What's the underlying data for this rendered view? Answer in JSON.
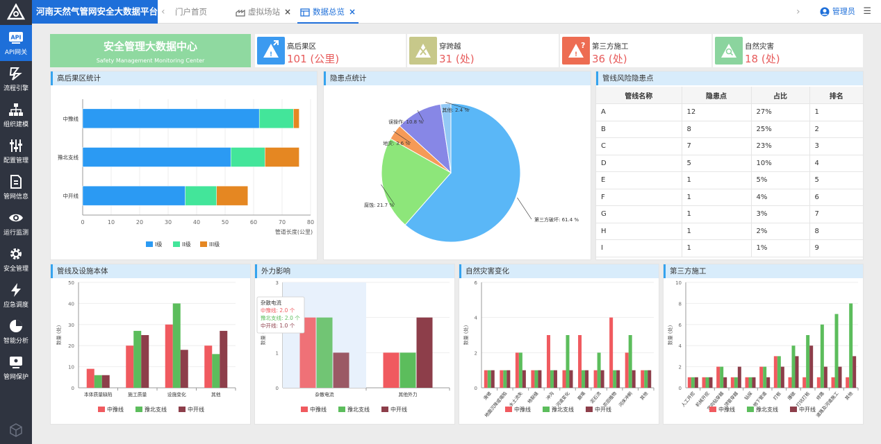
{
  "app": {
    "title": "河南天然气管网安全大数据平台"
  },
  "tabs": [
    {
      "label": "门户首页"
    },
    {
      "label": "虚拟场站"
    },
    {
      "label": "数据总览"
    }
  ],
  "user": {
    "name": "管理员"
  },
  "sidebar": {
    "items": [
      {
        "label": "API网关"
      },
      {
        "label": "流程引擎"
      },
      {
        "label": "组织建模"
      },
      {
        "label": "配置管理"
      },
      {
        "label": "管网信息"
      },
      {
        "label": "运行监测"
      },
      {
        "label": "安全管理"
      },
      {
        "label": "应急调度"
      },
      {
        "label": "智能分析"
      },
      {
        "label": "管网保护"
      }
    ]
  },
  "hero": {
    "title": "安全管理大数据中心",
    "subtitle": "Safety Management Monitoring Center"
  },
  "stats": [
    {
      "label": "高后果区",
      "value": "101 (公里)"
    },
    {
      "label": "穿跨越",
      "value": "31 (处)"
    },
    {
      "label": "第三方施工",
      "value": "36 (处)"
    },
    {
      "label": "自然灾害",
      "value": "18 (处)"
    }
  ],
  "colors": {
    "s1": "#2b9af3",
    "s2": "#43e59a",
    "s3": "#e58722",
    "red": "#f05a5f",
    "green": "#5cbd5c",
    "dark": "#8d3e4a"
  },
  "panels": {
    "hca": "高后果区统计",
    "hazard": "隐患点统计",
    "risk": "管线风险隐患点",
    "body": "管线及设施本体",
    "external": "外力影响",
    "nature": "自然灾害变化",
    "third": "第三方施工"
  },
  "chart_data": [
    {
      "type": "bar",
      "orientation": "horizontal",
      "stacked": true,
      "title": "高后果区统计",
      "categories": [
        "中豫线",
        "豫北支线",
        "中开线"
      ],
      "series": [
        {
          "name": "I级",
          "values": [
            62,
            52,
            36
          ]
        },
        {
          "name": "II级",
          "values": [
            12,
            12,
            11
          ]
        },
        {
          "name": "III级",
          "values": [
            2,
            12,
            11
          ]
        }
      ],
      "xticks": [
        "0",
        "10",
        "20",
        "30",
        "40",
        "50",
        "60",
        "70",
        "80"
      ],
      "xlim": [
        0,
        80
      ],
      "xlabel": "管道长度(公里)"
    },
    {
      "type": "pie",
      "title": "隐患点统计",
      "slices": [
        {
          "label": "第三方破坏",
          "value": 61.4,
          "text": "第三方破坏: 61.4 %",
          "color": "#5ab7f7"
        },
        {
          "label": "腐蚀",
          "value": 21.7,
          "text": "腐蚀: 21.7 %",
          "color": "#8de67a"
        },
        {
          "label": "地灾",
          "value": 3.6,
          "text": "地灾: 3.6 %",
          "color": "#f59a57"
        },
        {
          "label": "误操作",
          "value": 10.8,
          "text": "误操作: 10.8 %",
          "color": "#8787e6"
        },
        {
          "label": "其他",
          "value": 2.4,
          "text": "其他: 2.4 %",
          "color": "#93c9f5"
        }
      ]
    },
    {
      "type": "table",
      "title": "管线风险隐患点",
      "columns": [
        "管线名称",
        "隐患点",
        "占比",
        "排名"
      ],
      "rows": [
        [
          "A",
          "12",
          "27%",
          "1"
        ],
        [
          "B",
          "8",
          "25%",
          "2"
        ],
        [
          "C",
          "7",
          "23%",
          "3"
        ],
        [
          "D",
          "5",
          "10%",
          "4"
        ],
        [
          "E",
          "1",
          "5%",
          "5"
        ],
        [
          "F",
          "1",
          "4%",
          "6"
        ],
        [
          "G",
          "1",
          "3%",
          "7"
        ],
        [
          "H",
          "1",
          "2%",
          "8"
        ],
        [
          "I",
          "1",
          "1%",
          "9"
        ]
      ]
    },
    {
      "type": "bar",
      "title": "管线及设施本体",
      "categories": [
        "本体质量缺陷",
        "施工质量",
        "设施变化",
        "其他"
      ],
      "series": [
        {
          "name": "中豫线",
          "values": [
            9,
            20,
            30,
            20
          ]
        },
        {
          "name": "豫北支线",
          "values": [
            6,
            27,
            40,
            16
          ]
        },
        {
          "name": "中开线",
          "values": [
            6,
            25,
            18,
            27
          ]
        }
      ],
      "yticks": [
        "0",
        "10",
        "20",
        "30",
        "40",
        "50"
      ],
      "ylim": [
        0,
        50
      ],
      "ylabel": "数量 (处)",
      "legend": [
        "中豫线",
        "豫北支线",
        "中开线"
      ]
    },
    {
      "type": "bar",
      "title": "外力影响",
      "categories": [
        "杂散电流",
        "其他外力"
      ],
      "series": [
        {
          "name": "中豫线",
          "values": [
            2,
            1
          ]
        },
        {
          "name": "豫北支线",
          "values": [
            2,
            1
          ]
        },
        {
          "name": "中开线",
          "values": [
            1,
            2
          ]
        }
      ],
      "yticks": [
        "0",
        "1",
        "2",
        "3"
      ],
      "ylim": [
        0,
        3
      ],
      "ylabel": "数量 (处)",
      "legend": [
        "中豫线",
        "豫北支线",
        "中开线"
      ],
      "tooltip": {
        "title": "杂散电流",
        "rows": [
          "中豫线:  2.0 个",
          "豫北支线:  2.0 个",
          "中开线:  1.0 个"
        ]
      }
    },
    {
      "type": "bar",
      "title": "自然灾害变化",
      "categories": [
        "滑坡",
        "地面沉降或塌陷",
        "水土流失",
        "地裂缝",
        "冲沟",
        "河道变化",
        "崩塌",
        "泥石流",
        "农田植物",
        "河床冲刷",
        "其他"
      ],
      "series": [
        {
          "name": "中豫线",
          "values": [
            1,
            1,
            2,
            1,
            3,
            1,
            3,
            1,
            4,
            2,
            1
          ]
        },
        {
          "name": "豫北支线",
          "values": [
            1,
            1,
            2,
            1,
            1,
            3,
            1,
            2,
            1,
            3,
            1
          ]
        },
        {
          "name": "中开线",
          "values": [
            1,
            1,
            1,
            1,
            1,
            1,
            1,
            1,
            1,
            1,
            1
          ]
        }
      ],
      "yticks": [
        "0",
        "2",
        "4",
        "6"
      ],
      "ylim": [
        0,
        6
      ],
      "ylabel": "数量 (处)",
      "legend": [
        "中豫线",
        "豫北支线",
        "中开线"
      ]
    },
    {
      "type": "bar",
      "title": "第三方施工",
      "categories": [
        "人工开挖",
        "机械开挖",
        "定向钻穿越",
        "顶管穿越",
        "钻探",
        "地下管道",
        "打桩",
        "爆破",
        "打坑打桩",
        "修路",
        "道路及河道施工",
        "其他"
      ],
      "series": [
        {
          "name": "中豫线",
          "values": [
            1,
            1,
            2,
            1,
            1,
            2,
            3,
            1,
            1,
            1,
            1,
            1
          ]
        },
        {
          "name": "豫北支线",
          "values": [
            1,
            1,
            2,
            1,
            1,
            2,
            3,
            4,
            5,
            6,
            7,
            8
          ]
        },
        {
          "name": "中开线",
          "values": [
            1,
            1,
            1,
            2,
            1,
            1,
            2,
            3,
            4,
            2,
            2,
            3
          ]
        }
      ],
      "yticks": [
        "0",
        "2",
        "4",
        "6",
        "8",
        "10"
      ],
      "ylim": [
        0,
        10
      ],
      "ylabel": "数量 (处)",
      "legend": [
        "中豫线",
        "豫北支线",
        "中开线"
      ]
    }
  ]
}
